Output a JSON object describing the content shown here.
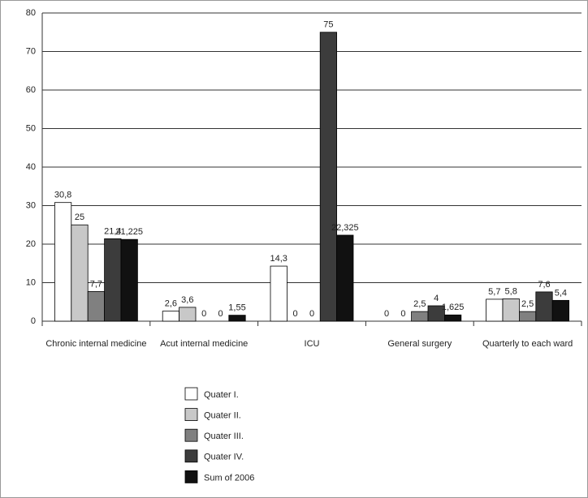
{
  "chart_data": {
    "type": "bar",
    "categories": [
      "Chronic internal medicine",
      "Acut internal medicine",
      "ICU",
      "General surgery",
      "Quarterly to each ward"
    ],
    "series": [
      {
        "name": "Quater I.",
        "color": "#ffffff",
        "values": [
          30.8,
          2.6,
          14.3,
          0,
          5.7
        ],
        "value_labels": [
          "30,8",
          "2,6",
          "14,3",
          "0",
          "5,7"
        ]
      },
      {
        "name": "Quater II.",
        "color": "#c8c8c8",
        "values": [
          25,
          3.6,
          0,
          0,
          5.8
        ],
        "value_labels": [
          "25",
          "3,6",
          "0",
          "0",
          "5,8"
        ]
      },
      {
        "name": "Quater III.",
        "color": "#808080",
        "values": [
          7.7,
          0,
          0,
          2.5,
          2.5
        ],
        "value_labels": [
          "7,7",
          "0",
          "0",
          "2,5",
          "2,5"
        ]
      },
      {
        "name": "Quater IV.",
        "color": "#3c3c3c",
        "values": [
          21.4,
          0,
          75,
          4,
          7.6
        ],
        "value_labels": [
          "21,4",
          "0",
          "75",
          "4",
          "7,6"
        ]
      },
      {
        "name": "Sum of 2006",
        "color": "#111111",
        "values": [
          21.225,
          1.55,
          22.325,
          1.625,
          5.4
        ],
        "value_labels": [
          "21,225",
          "1,55",
          "22,325",
          "1,625",
          "5,4"
        ]
      }
    ],
    "ylim": [
      0,
      80
    ],
    "yticks": [
      0,
      10,
      20,
      30,
      40,
      50,
      60,
      70,
      80
    ],
    "grid": true,
    "legend": "bottom"
  }
}
